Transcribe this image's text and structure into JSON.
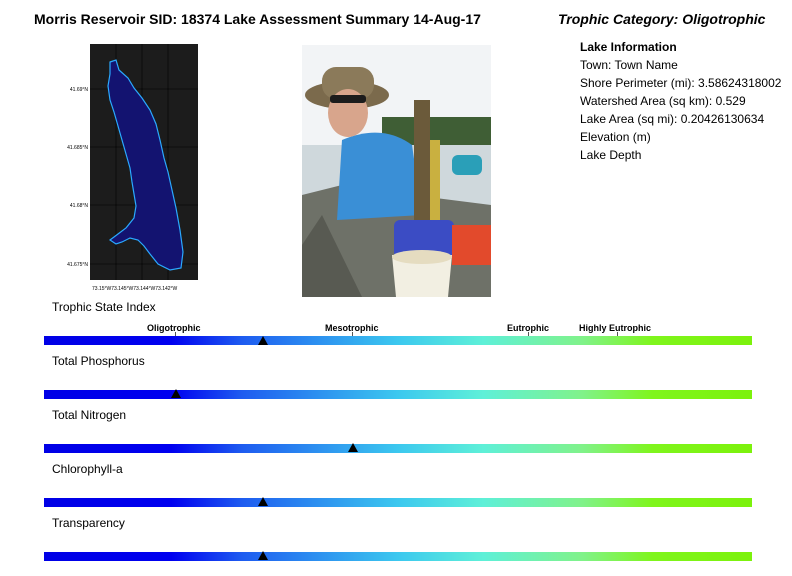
{
  "header": {
    "title": "Morris Reservoir SID: 18374 Lake Assessment Summary 14-Aug-17",
    "trophic_category": "Trophic Category: Oligotrophic"
  },
  "map": {
    "lat_labels": [
      "41.69°N",
      "41.685°N",
      "41.68°N",
      "41.675°N"
    ],
    "lon_labels": "73.15°W73.145°W73.144°W73.142°W",
    "lake_fill": "#131370",
    "outline_color": "#2aa9ff",
    "background": "#1c1c1c"
  },
  "lake_info": {
    "heading": "Lake Information",
    "lines": [
      "Town: Town Name",
      "Shore Perimeter (mi): 3.58624318002",
      "Watershed Area (sq km): 0.529",
      "Lake Area (sq mi): 0.20426130634",
      "Elevation (m)",
      "Lake Depth"
    ]
  },
  "tsi": {
    "label": "Trophic State Index",
    "categories": [
      "Oligotrophic",
      "Mesotrophic",
      "Eutrophic",
      "Highly Eutrophic"
    ]
  },
  "indicators": [
    {
      "label": "",
      "position": 0.31
    },
    {
      "label": "Total Phosphorus",
      "position": 0.186
    },
    {
      "label": "Total Nitrogen",
      "position": 0.437
    },
    {
      "label": "Chlorophyll-a",
      "position": 0.31
    },
    {
      "label": "Transparency",
      "position": 0.31
    }
  ],
  "colors": {
    "gradient": [
      "#0000e6",
      "#3cc8ef",
      "#7cf20c"
    ]
  }
}
